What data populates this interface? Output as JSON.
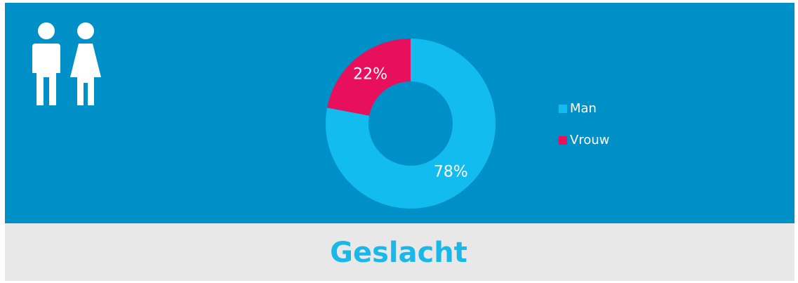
{
  "chart_data": {
    "type": "donut",
    "title": "Geslacht",
    "categories": [
      "Man",
      "Vrouw"
    ],
    "values": [
      78,
      22
    ],
    "value_labels": [
      "78%",
      "22%"
    ],
    "colors": [
      "#12bcee",
      "#e8105c"
    ],
    "legend": "right"
  }
}
